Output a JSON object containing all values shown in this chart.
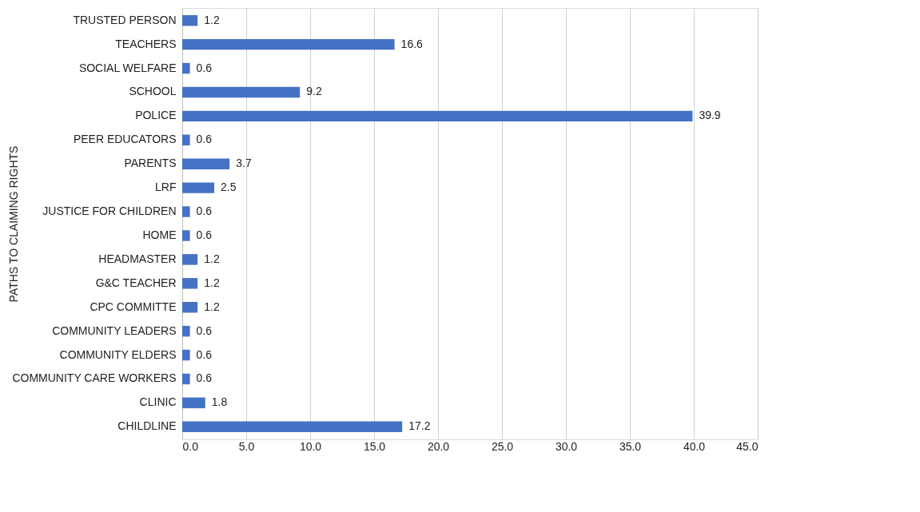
{
  "chart_data": {
    "type": "bar",
    "orientation": "horizontal",
    "ylabel": "PATHS TO CLAIMING RIGHTS",
    "categories": [
      "TRUSTED PERSON",
      "TEACHERS",
      "SOCIAL WELFARE",
      "SCHOOL",
      "POLICE",
      "PEER EDUCATORS",
      "PARENTS",
      "LRF",
      "JUSTICE FOR CHILDREN",
      "HOME",
      "HEADMASTER",
      "G&C TEACHER",
      "CPC COMMITTE",
      "COMMUNITY LEADERS",
      "COMMUNITY ELDERS",
      "COMMUNITY CARE WORKERS",
      "CLINIC",
      "CHILDLINE"
    ],
    "values": [
      1.2,
      16.6,
      0.6,
      9.2,
      39.9,
      0.6,
      3.7,
      2.5,
      0.6,
      0.6,
      1.2,
      1.2,
      1.2,
      0.6,
      0.6,
      0.6,
      1.8,
      17.2
    ],
    "color": "#4472c4",
    "data_labels": true,
    "grid": "x",
    "xlim": [
      0,
      45
    ],
    "xticks": [
      {
        "value": 0,
        "label": "0.0"
      },
      {
        "value": 5,
        "label": "5.0"
      },
      {
        "value": 10,
        "label": "10.0"
      },
      {
        "value": 15,
        "label": "15.0"
      },
      {
        "value": 20,
        "label": "20.0"
      },
      {
        "value": 25,
        "label": "25.0"
      },
      {
        "value": 30,
        "label": "30.0"
      },
      {
        "value": 35,
        "label": "35.0"
      },
      {
        "value": 40,
        "label": "40.0"
      },
      {
        "value": 45,
        "label": "45.0"
      }
    ]
  }
}
